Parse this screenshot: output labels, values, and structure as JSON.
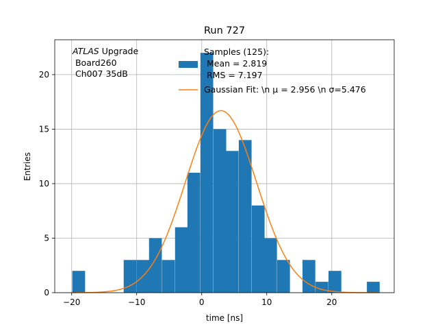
{
  "chart_data": {
    "type": "bar",
    "title": "Run 727",
    "xlabel": "time [ns]",
    "ylabel": "Entries",
    "xlim": [
      -22.6,
      29.6
    ],
    "ylim": [
      0,
      23.2
    ],
    "grid": true,
    "legend_placement": "top-right",
    "annotation": {
      "italic": "ATLAS",
      "line1_rest": " Upgrade",
      "line2": " Board260",
      "line3": " Ch007 35dB"
    },
    "xticks": [
      -20,
      -10,
      0,
      10,
      20
    ],
    "xtick_labels": [
      "−20",
      "−10",
      "0",
      "10",
      "20"
    ],
    "yticks": [
      0,
      5,
      10,
      15,
      20
    ],
    "ytick_labels": [
      "0",
      "5",
      "10",
      "15",
      "20"
    ],
    "bin_width": 1.967,
    "bins": [
      {
        "x": -19.9,
        "count": 2
      },
      {
        "x": -17.9,
        "count": 0
      },
      {
        "x": -15.9,
        "count": 0
      },
      {
        "x": -14.0,
        "count": 0
      },
      {
        "x": -12.0,
        "count": 3
      },
      {
        "x": -10.0,
        "count": 3
      },
      {
        "x": -8.1,
        "count": 5
      },
      {
        "x": -6.1,
        "count": 3
      },
      {
        "x": -4.1,
        "count": 6
      },
      {
        "x": -2.2,
        "count": 11
      },
      {
        "x": -0.2,
        "count": 22
      },
      {
        "x": 1.8,
        "count": 15
      },
      {
        "x": 3.7,
        "count": 13
      },
      {
        "x": 5.7,
        "count": 14
      },
      {
        "x": 7.7,
        "count": 8
      },
      {
        "x": 9.6,
        "count": 5
      },
      {
        "x": 11.6,
        "count": 3
      },
      {
        "x": 13.6,
        "count": 0
      },
      {
        "x": 15.5,
        "count": 3
      },
      {
        "x": 17.5,
        "count": 1
      },
      {
        "x": 19.5,
        "count": 2
      },
      {
        "x": 21.4,
        "count": 0
      },
      {
        "x": 23.4,
        "count": 0
      },
      {
        "x": 25.4,
        "count": 1
      }
    ],
    "fit": {
      "type": "gaussian",
      "amplitude": 16.7,
      "mu": 2.956,
      "sigma": 5.476,
      "x_range": [
        -19.9,
        27.3
      ]
    },
    "series": [
      {
        "name": "Samples (125):",
        "name_line2": " Mean = 2.819",
        "name_line3": " RMS = 7.197",
        "color": "#1f77b4"
      },
      {
        "name": "Gaussian Fit: \\n μ = 2.956 \\n σ=5.476",
        "color": "#ff7f0e"
      }
    ]
  }
}
